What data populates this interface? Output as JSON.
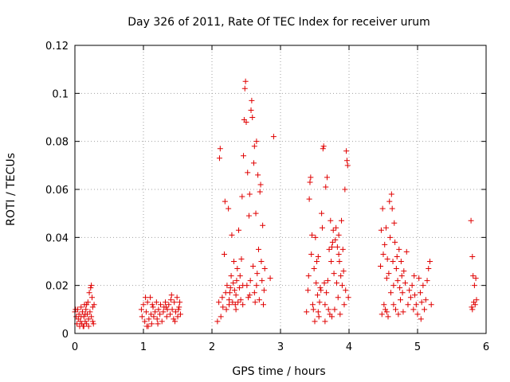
{
  "chart_data": {
    "type": "scatter",
    "title": "Day 326 of 2011, Rate Of TEC Index for receiver urum",
    "xlabel": "GPS time / hours",
    "ylabel": "ROTI / TECUs",
    "xlim": [
      0,
      6
    ],
    "ylim": [
      0,
      0.12
    ],
    "xticks": [
      0,
      1,
      2,
      3,
      4,
      5,
      6
    ],
    "xtick_labels": [
      "0",
      "1",
      "2",
      "3",
      "4",
      "5",
      "6"
    ],
    "yticks": [
      0,
      0.02,
      0.04,
      0.06,
      0.08,
      0.1,
      0.12
    ],
    "ytick_labels": [
      "0",
      "0.02",
      "0.04",
      "0.06",
      "0.08",
      "0.1",
      "0.12"
    ],
    "grid": true,
    "marker": "+",
    "marker_color": "#e00000",
    "series": [
      {
        "name": "ROTI",
        "points": [
          [
            0.0,
            0.009
          ],
          [
            0.02,
            0.007
          ],
          [
            0.04,
            0.01
          ],
          [
            0.05,
            0.006
          ],
          [
            0.06,
            0.008
          ],
          [
            0.08,
            0.005
          ],
          [
            0.09,
            0.011
          ],
          [
            0.1,
            0.004
          ],
          [
            0.11,
            0.009
          ],
          [
            0.12,
            0.003
          ],
          [
            0.13,
            0.007
          ],
          [
            0.14,
            0.012
          ],
          [
            0.15,
            0.005
          ],
          [
            0.16,
            0.01
          ],
          [
            0.17,
            0.004
          ],
          [
            0.18,
            0.008
          ],
          [
            0.19,
            0.013
          ],
          [
            0.2,
            0.006
          ],
          [
            0.21,
            0.017
          ],
          [
            0.22,
            0.009
          ],
          [
            0.23,
            0.019
          ],
          [
            0.24,
            0.007
          ],
          [
            0.25,
            0.015
          ],
          [
            0.26,
            0.011
          ],
          [
            0.27,
            0.004
          ],
          [
            0.28,
            0.012
          ],
          [
            0.03,
            0.004
          ],
          [
            0.07,
            0.003
          ],
          [
            0.13,
            0.003
          ],
          [
            0.17,
            0.012
          ],
          [
            0.2,
            0.003
          ],
          [
            0.24,
            0.02
          ],
          [
            0.26,
            0.005
          ],
          [
            0.01,
            0.01
          ],
          [
            0.09,
            0.007
          ],
          [
            0.15,
            0.008
          ],
          [
            0.97,
            0.01
          ],
          [
            0.98,
            0.007
          ],
          [
            1.0,
            0.012
          ],
          [
            1.02,
            0.005
          ],
          [
            1.04,
            0.009
          ],
          [
            1.05,
            0.003
          ],
          [
            1.06,
            0.013
          ],
          [
            1.08,
            0.006
          ],
          [
            1.1,
            0.015
          ],
          [
            1.11,
            0.008
          ],
          [
            1.12,
            0.004
          ],
          [
            1.14,
            0.011
          ],
          [
            1.15,
            0.007
          ],
          [
            1.17,
            0.009
          ],
          [
            1.19,
            0.013
          ],
          [
            1.2,
            0.006
          ],
          [
            1.22,
            0.01
          ],
          [
            1.24,
            0.008
          ],
          [
            1.25,
            0.012
          ],
          [
            1.27,
            0.005
          ],
          [
            1.29,
            0.009
          ],
          [
            1.3,
            0.011
          ],
          [
            1.32,
            0.013
          ],
          [
            1.34,
            0.007
          ],
          [
            1.35,
            0.01
          ],
          [
            1.37,
            0.012
          ],
          [
            1.39,
            0.008
          ],
          [
            1.4,
            0.014
          ],
          [
            1.42,
            0.01
          ],
          [
            1.44,
            0.006
          ],
          [
            1.45,
            0.013
          ],
          [
            1.47,
            0.009
          ],
          [
            1.49,
            0.015
          ],
          [
            1.5,
            0.007
          ],
          [
            1.52,
            0.011
          ],
          [
            1.53,
            0.013
          ],
          [
            1.54,
            0.008
          ],
          [
            1.03,
            0.015
          ],
          [
            1.07,
            0.003
          ],
          [
            1.13,
            0.012
          ],
          [
            1.21,
            0.004
          ],
          [
            1.33,
            0.011
          ],
          [
            1.41,
            0.016
          ],
          [
            1.46,
            0.005
          ],
          [
            1.51,
            0.01
          ],
          [
            2.08,
            0.005
          ],
          [
            2.1,
            0.013
          ],
          [
            2.11,
            0.073
          ],
          [
            2.12,
            0.077
          ],
          [
            2.13,
            0.007
          ],
          [
            2.15,
            0.015
          ],
          [
            2.16,
            0.011
          ],
          [
            2.18,
            0.033
          ],
          [
            2.19,
            0.055
          ],
          [
            2.2,
            0.017
          ],
          [
            2.21,
            0.01
          ],
          [
            2.22,
            0.02
          ],
          [
            2.24,
            0.052
          ],
          [
            2.25,
            0.014
          ],
          [
            2.26,
            0.017
          ],
          [
            2.27,
            0.019
          ],
          [
            2.28,
            0.024
          ],
          [
            2.29,
            0.041
          ],
          [
            2.3,
            0.013
          ],
          [
            2.31,
            0.021
          ],
          [
            2.32,
            0.03
          ],
          [
            2.33,
            0.018
          ],
          [
            2.34,
            0.012
          ],
          [
            2.35,
            0.016
          ],
          [
            2.36,
            0.022
          ],
          [
            2.37,
            0.027
          ],
          [
            2.38,
            0.013
          ],
          [
            2.39,
            0.043
          ],
          [
            2.4,
            0.019
          ],
          [
            2.41,
            0.024
          ],
          [
            2.42,
            0.014
          ],
          [
            2.43,
            0.031
          ],
          [
            2.44,
            0.057
          ],
          [
            2.45,
            0.012
          ],
          [
            2.46,
            0.074
          ],
          [
            2.47,
            0.089
          ],
          [
            2.48,
            0.102
          ],
          [
            2.49,
            0.105
          ],
          [
            2.5,
            0.088
          ],
          [
            2.51,
            0.02
          ],
          [
            2.52,
            0.067
          ],
          [
            2.53,
            0.015
          ],
          [
            2.54,
            0.049
          ],
          [
            2.55,
            0.058
          ],
          [
            2.56,
            0.022
          ],
          [
            2.57,
            0.093
          ],
          [
            2.58,
            0.097
          ],
          [
            2.59,
            0.09
          ],
          [
            2.6,
            0.028
          ],
          [
            2.61,
            0.071
          ],
          [
            2.62,
            0.078
          ],
          [
            2.63,
            0.013
          ],
          [
            2.64,
            0.05
          ],
          [
            2.65,
            0.08
          ],
          [
            2.66,
            0.025
          ],
          [
            2.67,
            0.066
          ],
          [
            2.68,
            0.035
          ],
          [
            2.69,
            0.014
          ],
          [
            2.7,
            0.059
          ],
          [
            2.71,
            0.062
          ],
          [
            2.72,
            0.03
          ],
          [
            2.73,
            0.022
          ],
          [
            2.74,
            0.045
          ],
          [
            2.75,
            0.012
          ],
          [
            2.76,
            0.018
          ],
          [
            2.77,
            0.027
          ],
          [
            2.85,
            0.023
          ],
          [
            2.9,
            0.082
          ],
          [
            2.55,
            0.016
          ],
          [
            2.45,
            0.02
          ],
          [
            2.35,
            0.01
          ],
          [
            2.25,
            0.012
          ],
          [
            2.65,
            0.02
          ],
          [
            2.62,
            0.017
          ],
          [
            3.38,
            0.009
          ],
          [
            3.4,
            0.018
          ],
          [
            3.41,
            0.024
          ],
          [
            3.42,
            0.056
          ],
          [
            3.43,
            0.063
          ],
          [
            3.44,
            0.065
          ],
          [
            3.45,
            0.033
          ],
          [
            3.46,
            0.041
          ],
          [
            3.47,
            0.012
          ],
          [
            3.48,
            0.01
          ],
          [
            3.49,
            0.027
          ],
          [
            3.5,
            0.005
          ],
          [
            3.51,
            0.04
          ],
          [
            3.52,
            0.021
          ],
          [
            3.53,
            0.03
          ],
          [
            3.54,
            0.016
          ],
          [
            3.55,
            0.032
          ],
          [
            3.56,
            0.007
          ],
          [
            3.57,
            0.013
          ],
          [
            3.58,
            0.019
          ],
          [
            3.59,
            0.018
          ],
          [
            3.6,
            0.05
          ],
          [
            3.61,
            0.044
          ],
          [
            3.62,
            0.077
          ],
          [
            3.63,
            0.078
          ],
          [
            3.64,
            0.021
          ],
          [
            3.65,
            0.012
          ],
          [
            3.66,
            0.061
          ],
          [
            3.67,
            0.017
          ],
          [
            3.68,
            0.065
          ],
          [
            3.69,
            0.022
          ],
          [
            3.7,
            0.01
          ],
          [
            3.71,
            0.035
          ],
          [
            3.72,
            0.008
          ],
          [
            3.73,
            0.047
          ],
          [
            3.74,
            0.03
          ],
          [
            3.75,
            0.036
          ],
          [
            3.76,
            0.038
          ],
          [
            3.77,
            0.043
          ],
          [
            3.78,
            0.025
          ],
          [
            3.79,
            0.01
          ],
          [
            3.8,
            0.039
          ],
          [
            3.81,
            0.044
          ],
          [
            3.82,
            0.021
          ],
          [
            3.83,
            0.036
          ],
          [
            3.84,
            0.015
          ],
          [
            3.85,
            0.041
          ],
          [
            3.86,
            0.03
          ],
          [
            3.87,
            0.008
          ],
          [
            3.88,
            0.024
          ],
          [
            3.89,
            0.047
          ],
          [
            3.9,
            0.02
          ],
          [
            3.91,
            0.035
          ],
          [
            3.92,
            0.026
          ],
          [
            3.93,
            0.012
          ],
          [
            3.94,
            0.06
          ],
          [
            3.95,
            0.018
          ],
          [
            3.96,
            0.076
          ],
          [
            3.97,
            0.072
          ],
          [
            3.98,
            0.07
          ],
          [
            3.99,
            0.015
          ],
          [
            3.55,
            0.009
          ],
          [
            3.65,
            0.005
          ],
          [
            3.85,
            0.033
          ],
          [
            3.75,
            0.007
          ],
          [
            4.46,
            0.028
          ],
          [
            4.47,
            0.043
          ],
          [
            4.48,
            0.008
          ],
          [
            4.49,
            0.052
          ],
          [
            4.5,
            0.033
          ],
          [
            4.51,
            0.012
          ],
          [
            4.52,
            0.037
          ],
          [
            4.53,
            0.01
          ],
          [
            4.54,
            0.044
          ],
          [
            4.55,
            0.023
          ],
          [
            4.56,
            0.031
          ],
          [
            4.57,
            0.007
          ],
          [
            4.58,
            0.025
          ],
          [
            4.59,
            0.055
          ],
          [
            4.6,
            0.04
          ],
          [
            4.61,
            0.017
          ],
          [
            4.62,
            0.058
          ],
          [
            4.63,
            0.052
          ],
          [
            4.64,
            0.03
          ],
          [
            4.65,
            0.012
          ],
          [
            4.66,
            0.046
          ],
          [
            4.67,
            0.038
          ],
          [
            4.68,
            0.01
          ],
          [
            4.69,
            0.027
          ],
          [
            4.7,
            0.032
          ],
          [
            4.71,
            0.022
          ],
          [
            4.72,
            0.008
          ],
          [
            4.73,
            0.035
          ],
          [
            4.74,
            0.019
          ],
          [
            4.75,
            0.014
          ],
          [
            4.76,
            0.03
          ],
          [
            4.77,
            0.024
          ],
          [
            4.78,
            0.017
          ],
          [
            4.79,
            0.009
          ],
          [
            4.8,
            0.026
          ],
          [
            4.82,
            0.021
          ],
          [
            4.84,
            0.034
          ],
          [
            4.86,
            0.012
          ],
          [
            4.88,
            0.018
          ],
          [
            4.9,
            0.015
          ],
          [
            4.92,
            0.02
          ],
          [
            4.94,
            0.01
          ],
          [
            4.96,
            0.016
          ],
          [
            4.98,
            0.012
          ],
          [
            5.0,
            0.008
          ],
          [
            5.02,
            0.023
          ],
          [
            5.04,
            0.017
          ],
          [
            5.06,
            0.013
          ],
          [
            5.08,
            0.02
          ],
          [
            5.1,
            0.01
          ],
          [
            5.12,
            0.014
          ],
          [
            5.14,
            0.022
          ],
          [
            5.16,
            0.027
          ],
          [
            5.18,
            0.03
          ],
          [
            5.2,
            0.012
          ],
          [
            4.55,
            0.009
          ],
          [
            4.65,
            0.02
          ],
          [
            4.95,
            0.024
          ],
          [
            5.05,
            0.006
          ],
          [
            5.78,
            0.047
          ],
          [
            5.79,
            0.011
          ],
          [
            5.8,
            0.032
          ],
          [
            5.81,
            0.024
          ],
          [
            5.82,
            0.013
          ],
          [
            5.83,
            0.02
          ],
          [
            5.84,
            0.012
          ],
          [
            5.85,
            0.023
          ],
          [
            5.86,
            0.014
          ],
          [
            5.8,
            0.01
          ]
        ]
      }
    ]
  }
}
